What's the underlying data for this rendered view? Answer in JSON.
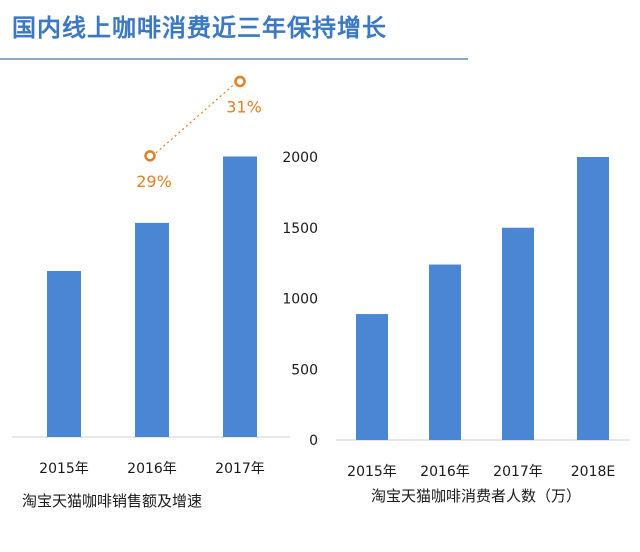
{
  "header": {
    "title": "国内线上咖啡消费近三年保持增长"
  },
  "chart_data": [
    {
      "type": "bar",
      "xlabel": "淘宝天猫咖啡销售额及增速",
      "categories": [
        "2015年",
        "2016年",
        "2017年"
      ],
      "series": [
        {
          "values": [
            1.0,
            1.29,
            1.69
          ]
        }
      ],
      "ylim": [
        0,
        2.0
      ],
      "growth_labels": [
        "",
        "29%",
        "31%"
      ],
      "colors": {
        "bar": "#4a86d4",
        "growth": "#e67e22"
      },
      "grid": false
    },
    {
      "type": "bar",
      "xlabel": "淘宝天猫咖啡消费者人数（万）",
      "categories": [
        "2015年",
        "2016年",
        "2017年",
        "2018E"
      ],
      "series": [
        {
          "values": [
            890,
            1240,
            1500,
            2000
          ]
        }
      ],
      "ylim": [
        0,
        2000
      ],
      "yticks": [
        0,
        500,
        1000,
        1500,
        2000
      ],
      "colors": {
        "bar": "#4a86d4"
      },
      "grid": false
    }
  ]
}
